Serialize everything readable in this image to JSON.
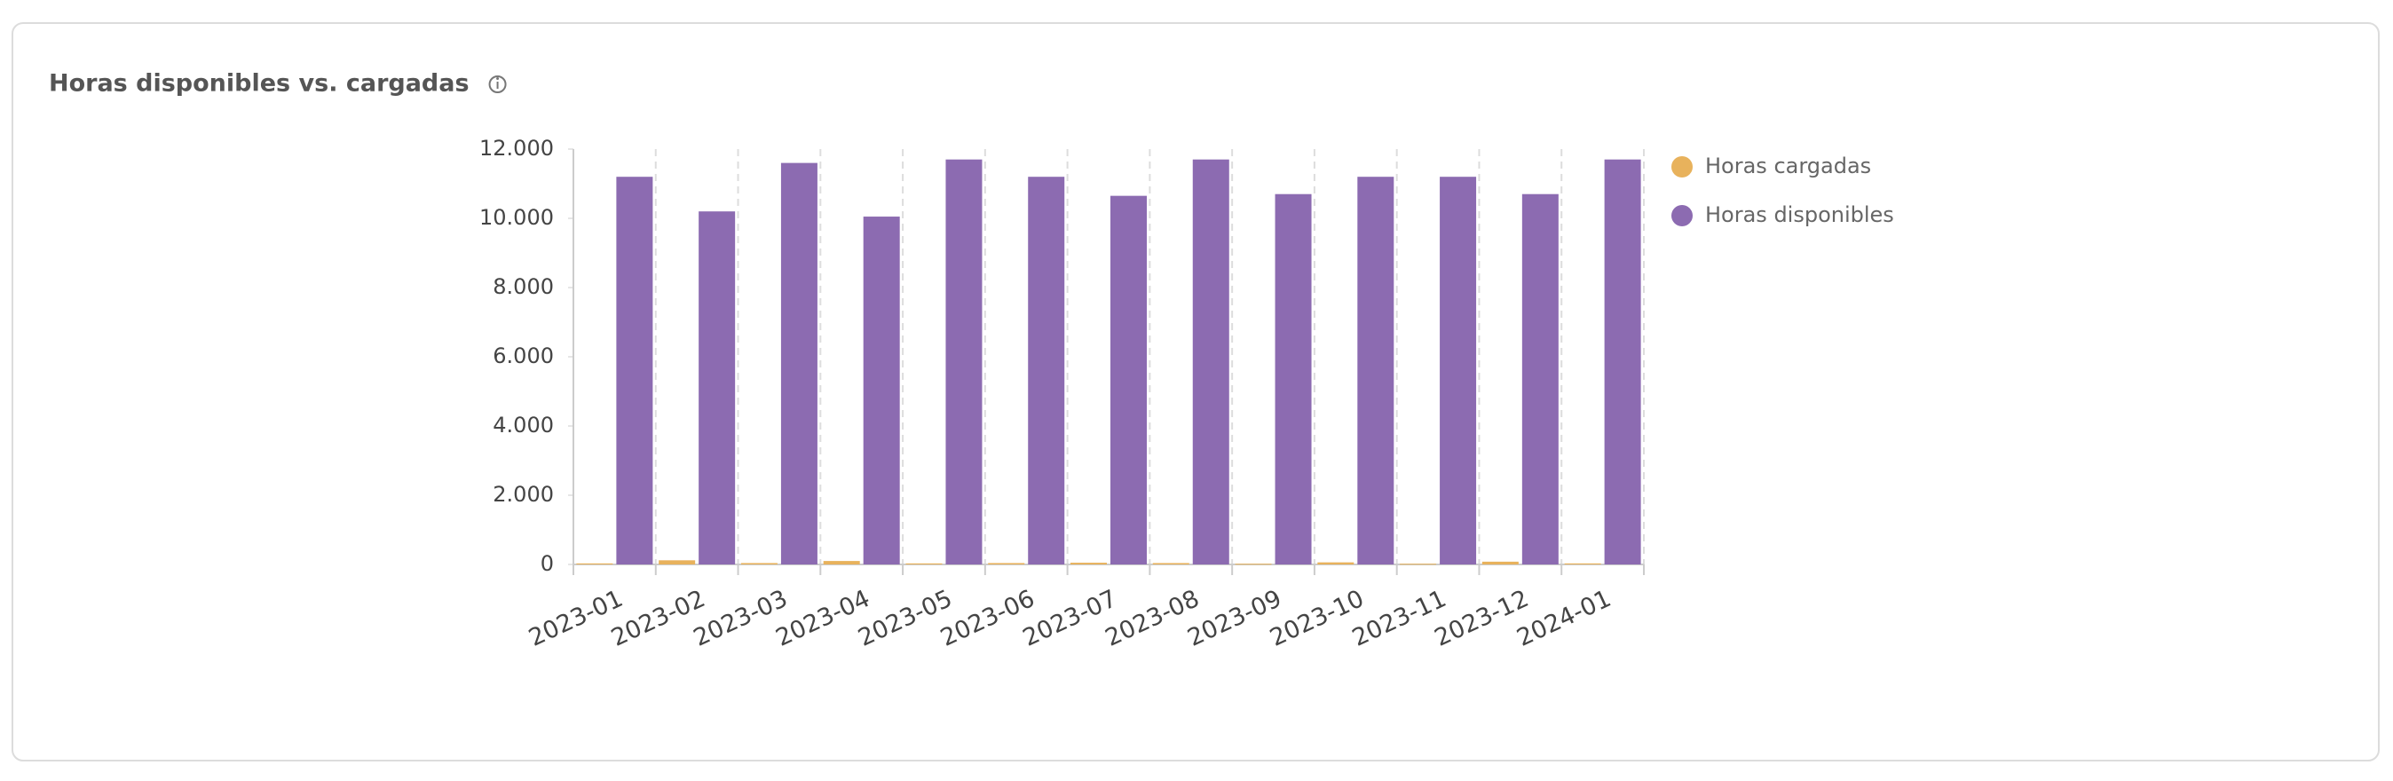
{
  "chart_data": {
    "type": "bar",
    "title": "Horas disponibles vs. cargadas",
    "categories": [
      "2023-01",
      "2023-02",
      "2023-03",
      "2023-04",
      "2023-05",
      "2023-06",
      "2023-07",
      "2023-08",
      "2023-09",
      "2023-10",
      "2023-11",
      "2023-12",
      "2024-01"
    ],
    "series": [
      {
        "name": "Horas cargadas",
        "color": "#e8b25c",
        "values": [
          30,
          120,
          40,
          100,
          30,
          40,
          50,
          40,
          20,
          60,
          20,
          80,
          30
        ]
      },
      {
        "name": "Horas disponibles",
        "color": "#8c6bb1",
        "values": [
          11200,
          10200,
          11600,
          10050,
          11700,
          11200,
          10650,
          11700,
          10700,
          11200,
          11200,
          10700,
          11700
        ]
      }
    ],
    "ylim": [
      0,
      12000
    ],
    "yticks": [
      0,
      {
        "value": 2000,
        "label": "2.000"
      },
      {
        "value": 4000,
        "label": "4.000"
      },
      {
        "value": 6000,
        "label": "6.000"
      },
      {
        "value": 8000,
        "label": "8.000"
      },
      {
        "value": 10000,
        "label": "10.000"
      },
      {
        "value": 12000,
        "label": "12.000"
      }
    ],
    "legend": "right"
  }
}
